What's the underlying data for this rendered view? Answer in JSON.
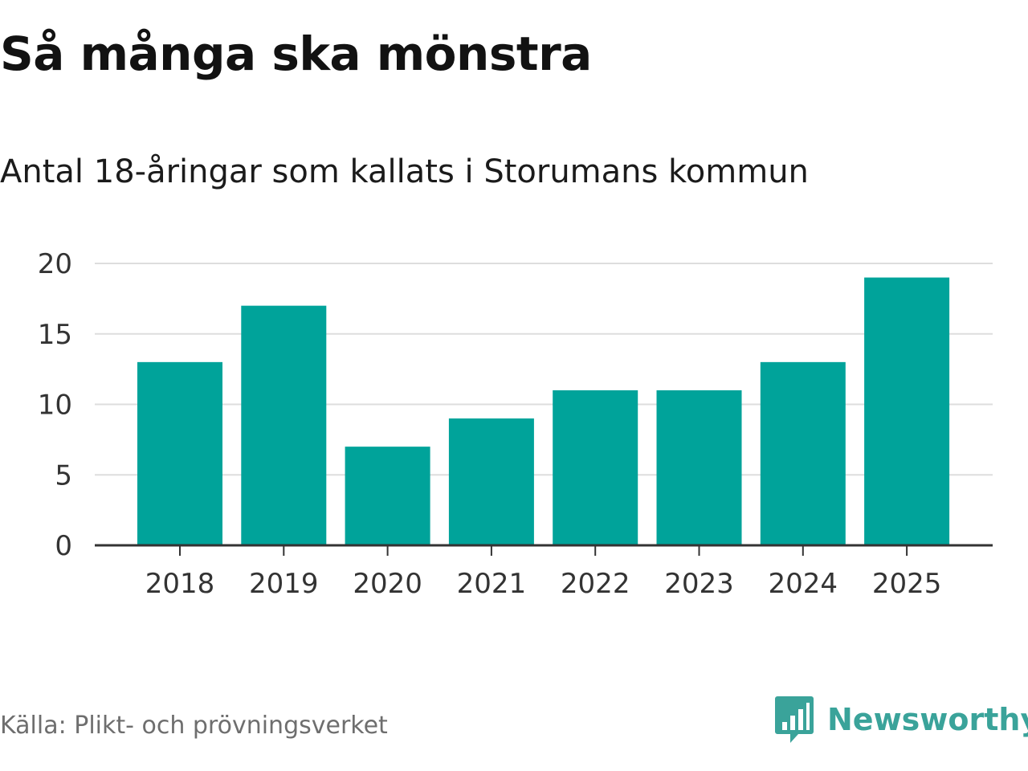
{
  "title": "Så många ska mönstra",
  "subtitle": "Antal 18-åringar som kallats i Storumans kommun",
  "source": "Källa: Plikt- och prövningsverket",
  "brand": {
    "name": "Newsworthy",
    "icon": "newsworthy-logo-icon",
    "color": "#3aa39a"
  },
  "chart_data": {
    "type": "bar",
    "title": "Så många ska mönstra",
    "subtitle": "Antal 18-åringar som kallats i Storumans kommun",
    "categories": [
      "2018",
      "2019",
      "2020",
      "2021",
      "2022",
      "2023",
      "2024",
      "2025"
    ],
    "values": [
      13,
      17,
      7,
      9,
      11,
      11,
      13,
      19
    ],
    "ylim": [
      0,
      20
    ],
    "yticks": [
      0,
      5,
      10,
      15,
      20
    ],
    "grid": true,
    "bar_color": "#00a39a"
  }
}
